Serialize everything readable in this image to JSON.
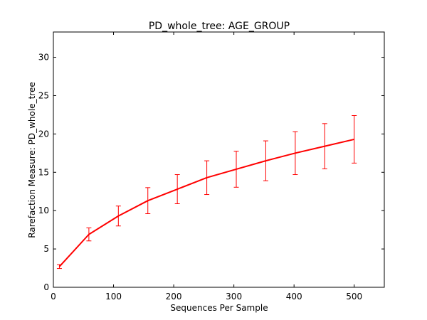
{
  "chart_data": {
    "type": "line",
    "title": "PD_whole_tree: AGE_GROUP",
    "xlabel": "Sequences Per Sample",
    "ylabel": "Rarefaction Measure: PD_whole_tree",
    "xlim": [
      0,
      550
    ],
    "ylim": [
      0,
      33.3
    ],
    "xticks": [
      0,
      100,
      200,
      300,
      400,
      500
    ],
    "yticks": [
      0,
      5,
      10,
      15,
      20,
      25,
      30
    ],
    "grid": false,
    "series": [
      {
        "color": "#ff0000",
        "x": [
          10,
          59,
          108,
          157,
          206,
          255,
          304,
          353,
          402,
          451,
          500
        ],
        "y": [
          2.7,
          6.9,
          9.3,
          11.3,
          12.8,
          14.3,
          15.4,
          16.5,
          17.5,
          18.4,
          19.3
        ],
        "err": [
          0.25,
          0.85,
          1.3,
          1.7,
          1.9,
          2.2,
          2.35,
          2.6,
          2.8,
          2.95,
          3.1
        ]
      }
    ]
  }
}
